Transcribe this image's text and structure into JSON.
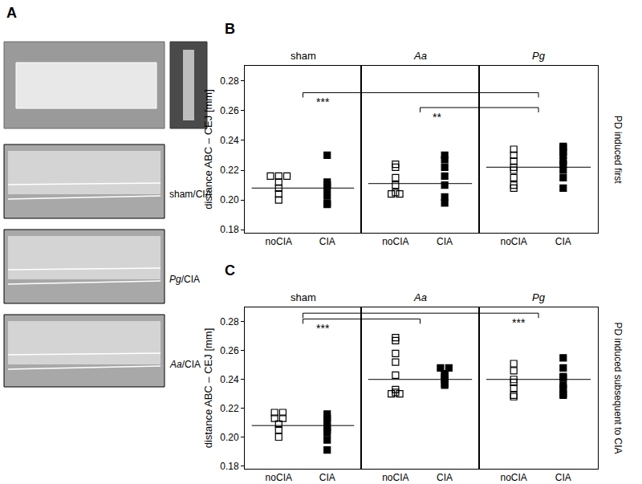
{
  "panel_a": {
    "label": "A",
    "image_labels": [
      "sham/CIA",
      "Pg/CIA",
      "Aa/CIA"
    ]
  },
  "chart_data": [
    {
      "type": "scatter",
      "label": "B",
      "side_label": "PD induced first",
      "y_label": "distance ABC – CEJ [mm]",
      "ylim": [
        0.178,
        0.29
      ],
      "yticks": [
        0.18,
        {
          "value": 0.2,
          "label": "0.20"
        },
        0.22,
        0.24,
        0.26,
        0.28
      ],
      "categories": [
        "noCIA",
        "CIA"
      ],
      "groups": [
        {
          "name": "sham",
          "median": 0.208,
          "series": [
            {
              "name": "noCIA",
              "color": "#000000",
              "marker": "open square",
              "values": [
                0.216,
                0.216,
                0.216,
                0.212,
                0.208,
                0.204,
                0.2
              ]
            },
            {
              "name": "CIA",
              "color": "#000000",
              "marker": "filled square",
              "values": [
                0.23,
                0.212,
                0.21,
                0.208,
                0.203,
                0.198,
                0.197
              ]
            }
          ]
        },
        {
          "name": "Aa",
          "median": 0.211,
          "series": [
            {
              "name": "noCIA",
              "color": "#000000",
              "marker": "open square",
              "values": [
                0.224,
                0.222,
                0.215,
                0.21,
                0.205,
                0.204,
                0.204
              ]
            },
            {
              "name": "CIA",
              "color": "#000000",
              "marker": "filled square",
              "values": [
                0.23,
                0.227,
                0.222,
                0.216,
                0.21,
                0.202,
                0.198
              ]
            }
          ]
        },
        {
          "name": "Pg",
          "median": 0.222,
          "series": [
            {
              "name": "noCIA",
              "color": "#000000",
              "marker": "open square",
              "values": [
                0.234,
                0.23,
                0.226,
                0.222,
                0.22,
                0.215,
                0.21,
                0.208
              ]
            },
            {
              "name": "CIA",
              "color": "#000000",
              "marker": "filled square",
              "values": [
                0.236,
                0.235,
                0.232,
                0.23,
                0.226,
                0.224,
                0.22,
                0.215,
                0.208
              ]
            }
          ]
        }
      ],
      "significance": [
        {
          "from": "sham",
          "to": "Pg",
          "label": "***",
          "y": 0.272
        },
        {
          "from": "Aa",
          "to": "Pg",
          "label": "**",
          "y": 0.262
        }
      ]
    },
    {
      "type": "scatter",
      "label": "C",
      "side_label": "PD induced subsequent to CIA",
      "y_label": "distance ABC – CEJ [mm]",
      "ylim": [
        0.178,
        0.29
      ],
      "yticks": [
        0.18,
        {
          "value": 0.2,
          "label": "0.20"
        },
        0.22,
        0.24,
        0.26,
        0.28
      ],
      "categories": [
        "noCIA",
        "CIA"
      ],
      "groups": [
        {
          "name": "sham",
          "median": 0.208,
          "series": [
            {
              "name": "noCIA",
              "color": "#000000",
              "marker": "open square",
              "values": [
                0.217,
                0.217,
                0.213,
                0.213,
                0.209,
                0.205,
                0.2
              ]
            },
            {
              "name": "CIA",
              "color": "#000000",
              "marker": "filled square",
              "values": [
                0.216,
                0.213,
                0.211,
                0.207,
                0.205,
                0.203,
                0.198,
                0.191
              ]
            }
          ]
        },
        {
          "name": "Aa",
          "median": 0.24,
          "series": [
            {
              "name": "noCIA",
              "color": "#000000",
              "marker": "open square",
              "values": [
                0.269,
                0.267,
                0.258,
                0.252,
                0.243,
                0.233,
                0.231,
                0.23,
                0.23
              ]
            },
            {
              "name": "CIA",
              "color": "#000000",
              "marker": "filled square",
              "values": [
                0.248,
                0.248,
                0.244,
                0.243,
                0.241,
                0.24,
                0.237,
                0.236
              ]
            }
          ]
        },
        {
          "name": "Pg",
          "median": 0.24,
          "series": [
            {
              "name": "noCIA",
              "color": "#000000",
              "marker": "open square",
              "values": [
                0.251,
                0.246,
                0.24,
                0.238,
                0.234,
                0.229,
                0.228
              ]
            },
            {
              "name": "CIA",
              "color": "#000000",
              "marker": "filled square",
              "values": [
                0.255,
                0.248,
                0.242,
                0.241,
                0.236,
                0.234,
                0.23,
                0.229
              ]
            }
          ]
        }
      ],
      "significance": [
        {
          "from": "sham",
          "to": "Aa",
          "label": "***",
          "y": 0.282
        },
        {
          "from": "sham",
          "to": "Pg",
          "label": "***",
          "y": 0.286
        }
      ]
    }
  ]
}
